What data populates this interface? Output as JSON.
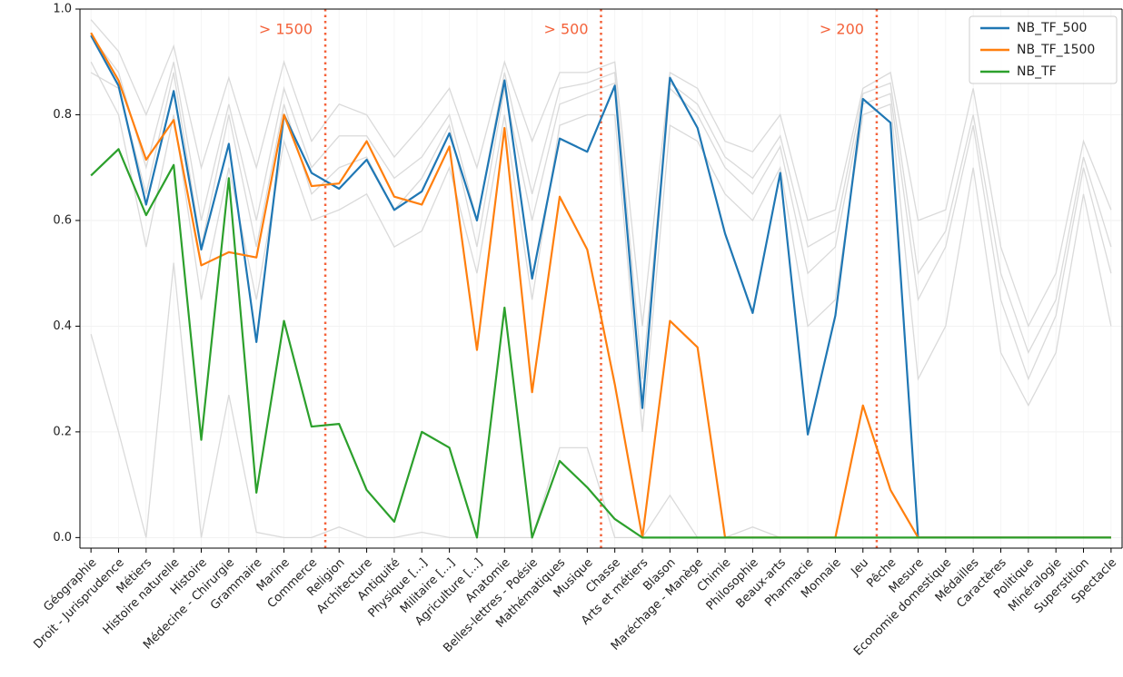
{
  "chart_data": {
    "type": "line",
    "categories": [
      "Géographie",
      "Droit - Jurisprudence",
      "Métiers",
      "Histoire naturelle",
      "Histoire",
      "Médecine - Chirurgie",
      "Grammaire",
      "Marine",
      "Commerce",
      "Religion",
      "Architecture",
      "Antiquité",
      "Physique [...]",
      "Militaire [...]",
      "Agriculture [...]",
      "Anatomie",
      "Belles-lettres - Poésie",
      "Mathématiques",
      "Musique",
      "Chasse",
      "Arts et métiers",
      "Blason",
      "Maréchage - Manège",
      "Chimie",
      "Philosophie",
      "Beaux-arts",
      "Pharmacie",
      "Monnaie",
      "Jeu",
      "Pêche",
      "Mesure",
      "Economie domestique",
      "Médailles",
      "Caractères",
      "Politique",
      "Minéralogie",
      "Superstition",
      "Spectacle"
    ],
    "ylim": [
      -0.02,
      1.0
    ],
    "yticks": [
      {
        "value": 0,
        "label": "0.0"
      },
      0.2,
      0.4,
      0.6,
      0.8,
      {
        "value": 1,
        "label": "1.0"
      }
    ],
    "grid": true,
    "legend": "upper right",
    "background_series": [
      {
        "color": "#d3d3d3",
        "values": [
          0.98,
          0.92,
          0.8,
          0.93,
          0.7,
          0.87,
          0.7,
          0.9,
          0.75,
          0.82,
          0.8,
          0.72,
          0.78,
          0.85,
          0.7,
          0.9,
          0.75,
          0.88,
          0.88,
          0.9,
          0.4,
          0.88,
          0.85,
          0.75,
          0.73,
          0.8,
          0.6,
          0.62,
          0.85,
          0.88,
          0.6,
          0.62,
          0.85,
          0.55,
          0.4,
          0.5,
          0.75,
          0.62
        ]
      },
      {
        "color": "#d3d3d3",
        "values": [
          0.95,
          0.88,
          0.7,
          0.9,
          0.6,
          0.82,
          0.6,
          0.85,
          0.7,
          0.76,
          0.76,
          0.68,
          0.72,
          0.8,
          0.6,
          0.88,
          0.65,
          0.85,
          0.86,
          0.88,
          0.3,
          0.86,
          0.82,
          0.72,
          0.68,
          0.76,
          0.55,
          0.58,
          0.84,
          0.86,
          0.5,
          0.58,
          0.8,
          0.5,
          0.35,
          0.45,
          0.72,
          0.55
        ]
      },
      {
        "color": "#d3d3d3",
        "values": [
          0.88,
          0.85,
          0.65,
          0.88,
          0.55,
          0.8,
          0.55,
          0.82,
          0.65,
          0.7,
          0.72,
          0.62,
          0.68,
          0.78,
          0.55,
          0.85,
          0.6,
          0.82,
          0.84,
          0.86,
          0.25,
          0.85,
          0.8,
          0.7,
          0.65,
          0.74,
          0.5,
          0.55,
          0.82,
          0.84,
          0.45,
          0.55,
          0.78,
          0.45,
          0.3,
          0.42,
          0.7,
          0.5
        ]
      },
      {
        "color": "#d3d3d3",
        "values": [
          0.9,
          0.8,
          0.55,
          0.8,
          0.45,
          0.7,
          0.45,
          0.75,
          0.6,
          0.62,
          0.65,
          0.55,
          0.58,
          0.7,
          0.5,
          0.8,
          0.45,
          0.78,
          0.8,
          0.8,
          0.2,
          0.78,
          0.75,
          0.65,
          0.6,
          0.7,
          0.4,
          0.45,
          0.8,
          0.82,
          0.3,
          0.4,
          0.7,
          0.35,
          0.25,
          0.35,
          0.65,
          0.4
        ]
      },
      {
        "color": "#d3d3d3",
        "values": [
          0.385,
          0.2,
          0.0,
          0.52,
          0.0,
          0.27,
          0.01,
          0.0,
          0.0,
          0.02,
          0.0,
          0.0,
          0.01,
          0.0,
          0.0,
          0.0,
          0.0,
          0.17,
          0.17,
          0.0,
          0.0,
          0.08,
          0.0,
          0.0,
          0.02,
          0.0,
          0.0,
          0.0,
          0.0,
          0.0,
          0.0,
          0.0,
          0.0,
          0.0,
          0.0,
          0.0,
          0.0,
          0.0
        ]
      }
    ],
    "series": [
      {
        "name": "NB_TF_500",
        "color": "#1f77b4",
        "values": [
          0.95,
          0.855,
          0.63,
          0.845,
          0.545,
          0.745,
          0.37,
          0.8,
          0.69,
          0.66,
          0.715,
          0.62,
          0.655,
          0.765,
          0.6,
          0.865,
          0.49,
          0.755,
          0.73,
          0.855,
          0.245,
          0.87,
          0.775,
          0.575,
          0.425,
          0.69,
          0.195,
          0.42,
          0.83,
          0.785,
          0,
          0,
          0,
          0,
          0,
          0,
          0,
          0
        ]
      },
      {
        "name": "NB_TF_1500",
        "color": "#ff7f0e",
        "values": [
          0.955,
          0.865,
          0.715,
          0.79,
          0.515,
          0.54,
          0.53,
          0.8,
          0.665,
          0.67,
          0.75,
          0.645,
          0.63,
          0.74,
          0.355,
          0.775,
          0.275,
          0.645,
          0.545,
          0.29,
          0,
          0.41,
          0.36,
          0,
          0,
          0,
          0,
          0,
          0.25,
          0.09,
          0,
          0,
          0,
          0,
          0,
          0,
          0,
          0
        ]
      },
      {
        "name": "NB_TF",
        "color": "#2ca02c",
        "values": [
          0.685,
          0.735,
          0.61,
          0.705,
          0.185,
          0.68,
          0.085,
          0.41,
          0.21,
          0.215,
          0.09,
          0.03,
          0.2,
          0.17,
          0,
          0.435,
          0,
          0.145,
          0.095,
          0.035,
          0,
          0,
          0,
          0,
          0,
          0,
          0,
          0,
          0,
          0,
          0,
          0,
          0,
          0,
          0,
          0,
          0,
          0
        ]
      }
    ],
    "annotations": [
      {
        "x": 8.5,
        "text": "> 1500",
        "color": "#f4623a"
      },
      {
        "x": 18.5,
        "text": "> 500",
        "color": "#f4623a"
      },
      {
        "x": 28.5,
        "text": "> 200",
        "color": "#f4623a"
      }
    ]
  }
}
